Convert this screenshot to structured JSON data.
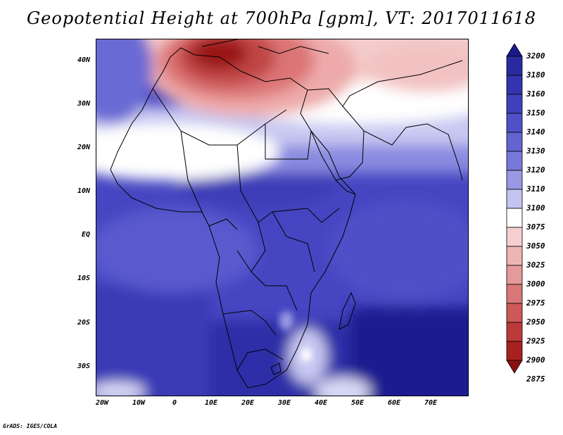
{
  "title": "Geopotential Height at 700hPa [gpm], VT: 2017011618",
  "credit": "GrADS: IGES/COLA",
  "lat_labels": [
    "40N",
    "30N",
    "20N",
    "10N",
    "EQ",
    "10S",
    "20S",
    "30S"
  ],
  "lon_labels": [
    "20W",
    "10W",
    "0",
    "10E",
    "20E",
    "30E",
    "40E",
    "50E",
    "60E",
    "70E"
  ],
  "colorbar": {
    "levels": [
      "3200",
      "3180",
      "3160",
      "3150",
      "3140",
      "3130",
      "3120",
      "3110",
      "3100",
      "3075",
      "3050",
      "3025",
      "3000",
      "2975",
      "2950",
      "2925",
      "2900",
      "2875"
    ],
    "colors": [
      "#1a1a8c",
      "#2a2aa0",
      "#3434b0",
      "#4040bc",
      "#5050c8",
      "#6464d0",
      "#7878da",
      "#9898e4",
      "#c4c4f0",
      "#ffffff",
      "#f6d0d0",
      "#eeb4b4",
      "#e49a9a",
      "#d87878",
      "#cc5858",
      "#bc3a3a",
      "#a82020",
      "#8c1010"
    ]
  },
  "map": {
    "region": "Africa",
    "lon_range": [
      -23,
      80
    ],
    "lat_range": [
      -37,
      45
    ],
    "features": "country borders, coastlines"
  }
}
